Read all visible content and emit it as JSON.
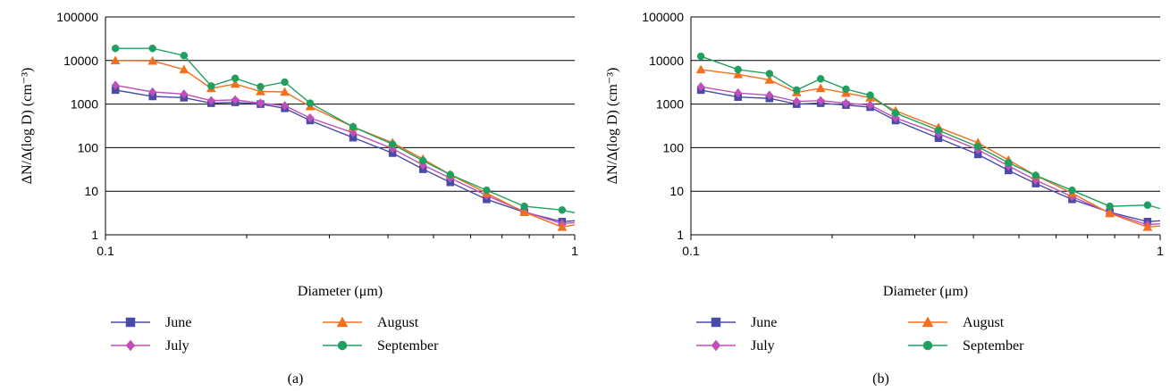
{
  "colors": {
    "June": "#4a4aa8",
    "July": "#c050b8",
    "August": "#f07020",
    "September": "#20a060",
    "grid": "#000000",
    "background": "#ffffff"
  },
  "legend": {
    "entries": [
      {
        "name": "June",
        "marker": "square"
      },
      {
        "name": "July",
        "marker": "diamond"
      },
      {
        "name": "August",
        "marker": "triangle"
      },
      {
        "name": "September",
        "marker": "circle"
      }
    ]
  },
  "chart_data": [
    {
      "type": "line",
      "panel_label": "(a)",
      "xlabel": "Diameter (μm)",
      "ylabel": "ΔN/Δ(log D) (cm⁻³)",
      "xscale": "log",
      "yscale": "log",
      "xlim": [
        0.1,
        1
      ],
      "ylim": [
        1,
        100000
      ],
      "x_tick_labels": [
        "0.1",
        "1"
      ],
      "y_tick_labels": [
        "1",
        "10",
        "100",
        "1000",
        "10000",
        "100000"
      ],
      "grid": "horizontal",
      "legend_placement": "bottom",
      "x": [
        0.105,
        0.126,
        0.147,
        0.168,
        0.189,
        0.214,
        0.241,
        0.273,
        0.337,
        0.409,
        0.475,
        0.543,
        0.649,
        0.781,
        0.94,
        1.0
      ],
      "series": [
        {
          "name": "June",
          "marker": "square",
          "values": [
            2100,
            1500,
            1400,
            1050,
            1100,
            1000,
            800,
            420,
            170,
            75,
            32,
            16,
            6.5,
            3.3,
            2.0,
            2.1
          ]
        },
        {
          "name": "July",
          "marker": "diamond",
          "values": [
            2700,
            1900,
            1700,
            1200,
            1250,
            1050,
            920,
            480,
            220,
            95,
            40,
            20,
            8,
            3.4,
            1.8,
            1.9
          ]
        },
        {
          "name": "August",
          "marker": "triangle",
          "values": [
            10000,
            9800,
            6200,
            2300,
            2900,
            1950,
            1900,
            880,
            300,
            130,
            55,
            24,
            9,
            3.3,
            1.5,
            1.7
          ]
        },
        {
          "name": "September",
          "marker": "circle",
          "values": [
            19000,
            19000,
            13000,
            2600,
            3900,
            2500,
            3200,
            1050,
            300,
            120,
            50,
            24,
            10.5,
            4.5,
            3.7,
            3.2
          ]
        }
      ]
    },
    {
      "type": "line",
      "panel_label": "(b)",
      "xlabel": "Diameter (μm)",
      "ylabel": "ΔN/Δ(log D) (cm⁻³)",
      "xscale": "log",
      "yscale": "log",
      "xlim": [
        0.1,
        1
      ],
      "ylim": [
        1,
        100000
      ],
      "x_tick_labels": [
        "0.1",
        "1"
      ],
      "y_tick_labels": [
        "1",
        "10",
        "100",
        "1000",
        "10000",
        "100000"
      ],
      "grid": "horizontal",
      "legend_placement": "bottom",
      "x": [
        0.105,
        0.126,
        0.147,
        0.168,
        0.189,
        0.214,
        0.241,
        0.273,
        0.337,
        0.409,
        0.475,
        0.543,
        0.649,
        0.781,
        0.94,
        1.0
      ],
      "series": [
        {
          "name": "June",
          "marker": "square",
          "values": [
            2100,
            1450,
            1350,
            1000,
            1050,
            950,
            850,
            420,
            165,
            70,
            30,
            15,
            6.5,
            3.3,
            2.0,
            2.1
          ]
        },
        {
          "name": "July",
          "marker": "diamond",
          "values": [
            2500,
            1800,
            1600,
            1150,
            1200,
            1050,
            950,
            480,
            210,
            90,
            38,
            18,
            7.5,
            3.2,
            1.7,
            1.8
          ]
        },
        {
          "name": "August",
          "marker": "triangle",
          "values": [
            6200,
            4800,
            3600,
            1850,
            2300,
            1800,
            1400,
            700,
            290,
            130,
            52,
            23,
            9,
            3.1,
            1.5,
            1.6
          ]
        },
        {
          "name": "September",
          "marker": "circle",
          "values": [
            12500,
            6200,
            5000,
            2100,
            3800,
            2200,
            1600,
            620,
            250,
            105,
            45,
            23,
            10.5,
            4.5,
            4.8,
            4.0
          ]
        }
      ]
    }
  ]
}
